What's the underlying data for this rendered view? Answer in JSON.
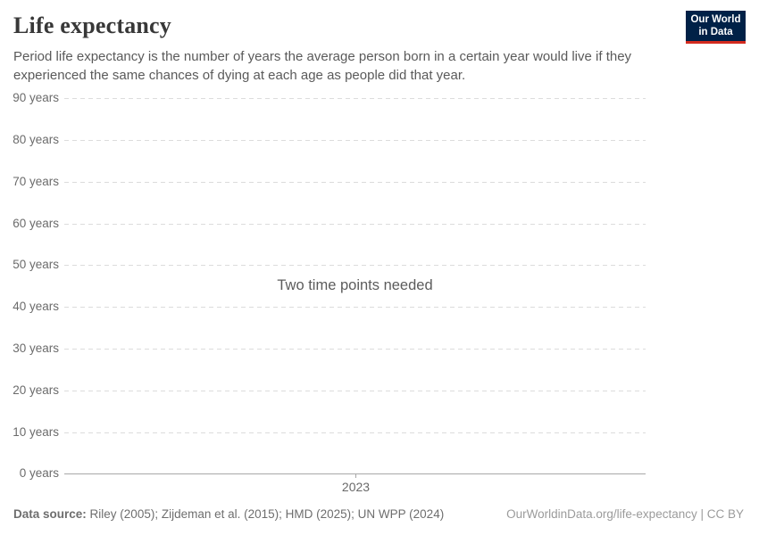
{
  "header": {
    "title": "Life expectancy",
    "subtitle": "Period life expectancy is the number of years the average person born in a certain year would live if they experienced the same chances of dying at each age as people did that year.",
    "logo": {
      "line1": "Our World",
      "line2": "in Data"
    }
  },
  "chart": {
    "message": "Two time points needed",
    "x_axis_label": "2023",
    "y_axis": [
      {
        "label": "90 years",
        "value": 90
      },
      {
        "label": "80 years",
        "value": 80
      },
      {
        "label": "70 years",
        "value": 70
      },
      {
        "label": "60 years",
        "value": 60
      },
      {
        "label": "50 years",
        "value": 50
      },
      {
        "label": "40 years",
        "value": 40
      },
      {
        "label": "30 years",
        "value": 30
      },
      {
        "label": "20 years",
        "value": 20
      },
      {
        "label": "10 years",
        "value": 10
      },
      {
        "label": "0 years",
        "value": 0
      }
    ]
  },
  "chart_data": {
    "type": "line",
    "title": "Life expectancy",
    "subtitle": "Period life expectancy is the number of years the average person born in a certain year would live if they experienced the same chances of dying at each age as people did that year.",
    "series": [],
    "annotation": "Two time points needed",
    "x_tick_labels": [
      "2023"
    ],
    "y_tick_labels": [
      "0 years",
      "10 years",
      "20 years",
      "30 years",
      "40 years",
      "50 years",
      "60 years",
      "70 years",
      "80 years",
      "90 years"
    ],
    "ylim": [
      0,
      90
    ],
    "grid": true,
    "legend": false
  },
  "footer": {
    "source_label": "Data source:",
    "source_text": "Riley (2005); Zijdeman et al. (2015); HMD (2025); UN WPP (2024)",
    "link_text": "OurWorldinData.org/life-expectancy | CC BY"
  },
  "colors": {
    "logo_bg": "#002147",
    "logo_accent": "#d32a1e",
    "gridline": "#dcdcdc",
    "axis_line": "#a7a7a7",
    "title_text": "#383838",
    "muted_text": "#6b6b6b"
  }
}
